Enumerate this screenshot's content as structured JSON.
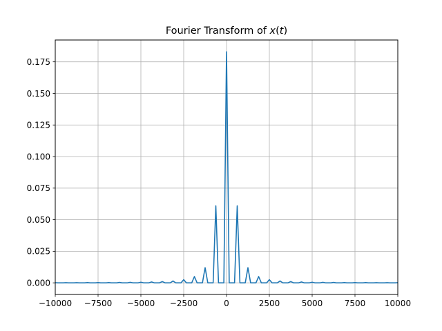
{
  "chart_data": {
    "type": "line",
    "title_main": "Fourier Transform of ",
    "title_math": "x",
    "title_math_open": "(",
    "title_math_var": "t",
    "title_math_close": ")",
    "xlabel": "",
    "ylabel": "",
    "xlim": [
      -10000,
      10000
    ],
    "ylim": [
      -0.0092,
      0.1923
    ],
    "grid": true,
    "x_ticks": [
      -10000,
      -7500,
      -5000,
      -2500,
      0,
      2500,
      5000,
      7500,
      10000
    ],
    "x_tick_labels": [
      "−10000",
      "−7500",
      "−5000",
      "−2500",
      "0",
      "2500",
      "5000",
      "7500",
      "10000"
    ],
    "y_ticks": [
      0.0,
      0.025,
      0.05,
      0.075,
      0.1,
      0.125,
      0.15,
      0.175
    ],
    "y_tick_labels": [
      "0.000",
      "0.025",
      "0.050",
      "0.075",
      "0.100",
      "0.125",
      "0.150",
      "0.175"
    ],
    "series": [
      {
        "color": "#1f77b4",
        "peak_spacing": 625,
        "peaks": [
          {
            "x": -10000,
            "y": 0.0001
          },
          {
            "x": -9375,
            "y": 0.0001
          },
          {
            "x": -8750,
            "y": 0.0001
          },
          {
            "x": -8125,
            "y": 0.0002
          },
          {
            "x": -7500,
            "y": 0.0002
          },
          {
            "x": -6875,
            "y": 0.0002
          },
          {
            "x": -6250,
            "y": 0.0003
          },
          {
            "x": -5625,
            "y": 0.0004
          },
          {
            "x": -5000,
            "y": 0.0005
          },
          {
            "x": -4375,
            "y": 0.0007
          },
          {
            "x": -3750,
            "y": 0.001
          },
          {
            "x": -3125,
            "y": 0.0015
          },
          {
            "x": -2500,
            "y": 0.0025
          },
          {
            "x": -1875,
            "y": 0.005
          },
          {
            "x": -1250,
            "y": 0.012
          },
          {
            "x": -625,
            "y": 0.061
          },
          {
            "x": 0,
            "y": 0.183
          },
          {
            "x": 625,
            "y": 0.061
          },
          {
            "x": 1250,
            "y": 0.012
          },
          {
            "x": 1875,
            "y": 0.005
          },
          {
            "x": 2500,
            "y": 0.0025
          },
          {
            "x": 3125,
            "y": 0.0015
          },
          {
            "x": 3750,
            "y": 0.001
          },
          {
            "x": 4375,
            "y": 0.0007
          },
          {
            "x": 5000,
            "y": 0.0005
          },
          {
            "x": 5625,
            "y": 0.0004
          },
          {
            "x": 6250,
            "y": 0.0003
          },
          {
            "x": 6875,
            "y": 0.0002
          },
          {
            "x": 7500,
            "y": 0.0002
          },
          {
            "x": 8125,
            "y": 0.0002
          },
          {
            "x": 8750,
            "y": 0.0001
          },
          {
            "x": 9375,
            "y": 0.0001
          },
          {
            "x": 10000,
            "y": 0.0001
          }
        ]
      }
    ]
  }
}
